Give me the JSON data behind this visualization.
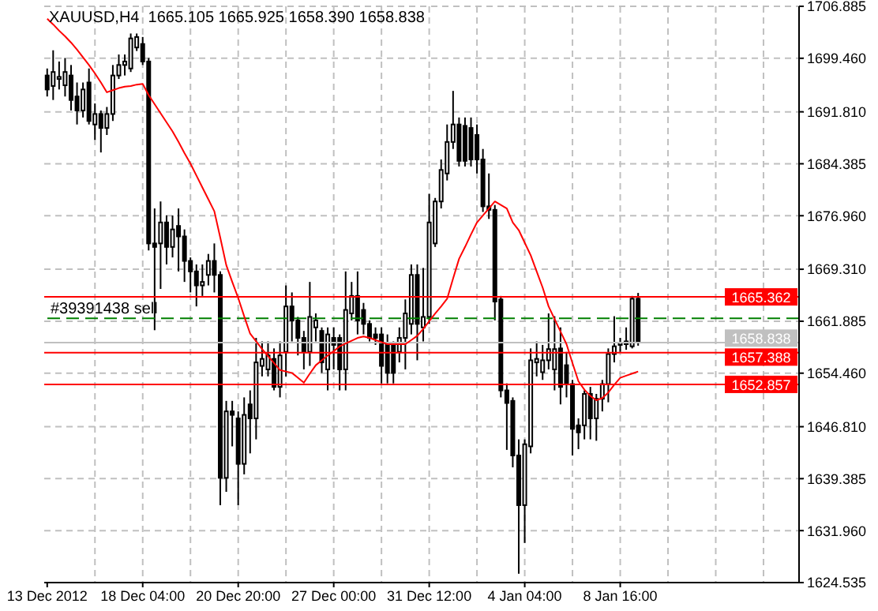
{
  "chart_data": {
    "type": "candlestick",
    "title": "XAUUSD,H4  1665.105 1665.925 1658.390 1658.838",
    "categories": [
      "13 Dec 2012",
      null,
      null,
      null,
      null,
      null,
      null,
      null,
      null,
      null,
      null,
      null,
      null,
      null,
      null,
      null,
      "18 Dec 04:00",
      null,
      null,
      null,
      null,
      null,
      null,
      null,
      null,
      null,
      null,
      null,
      null,
      null,
      null,
      null,
      "20 Dec 20:00",
      null,
      null,
      null,
      null,
      null,
      null,
      null,
      null,
      null,
      null,
      null,
      null,
      null,
      null,
      null,
      "27 Dec 00:00",
      null,
      null,
      null,
      null,
      null,
      null,
      null,
      null,
      null,
      null,
      null,
      null,
      null,
      null,
      null,
      "31 Dec 12:00",
      null,
      null,
      null,
      null,
      null,
      null,
      null,
      null,
      null,
      null,
      null,
      null,
      null,
      null,
      null,
      "4 Jan 04:00",
      null,
      null,
      null,
      null,
      null,
      null,
      null,
      null,
      null,
      null,
      null,
      null,
      null,
      null,
      null,
      "8 Jan 16:00",
      null,
      null,
      null
    ],
    "ohlc": [
      [
        1697,
        1698,
        1694,
        1695
      ],
      [
        1695.5,
        1700.6,
        1693.5,
        1697.5
      ],
      [
        1696.5,
        1699,
        1695,
        1696.8
      ],
      [
        1695.6,
        1699.5,
        1694,
        1697.5
      ],
      [
        1697,
        1698.5,
        1692,
        1693.5
      ],
      [
        1694,
        1696,
        1690,
        1692
      ],
      [
        1692,
        1696,
        1691,
        1695
      ],
      [
        1696,
        1698,
        1690,
        1690.5
      ],
      [
        1690,
        1693,
        1687.8,
        1691.5
      ],
      [
        1691.5,
        1692,
        1686,
        1689.5
      ],
      [
        1689.5,
        1692.5,
        1688.5,
        1691.5
      ],
      [
        1691.5,
        1698.5,
        1690.5,
        1697
      ],
      [
        1697,
        1700,
        1696.5,
        1698.5
      ],
      [
        1698.5,
        1700,
        1697,
        1699
      ],
      [
        1698,
        1703,
        1697.5,
        1702.3
      ],
      [
        1701,
        1703,
        1700.5,
        1702.5
      ],
      [
        1701.5,
        1702.5,
        1698.5,
        1699
      ],
      [
        1699,
        1699.5,
        1672,
        1673
      ],
      [
        1673,
        1678,
        1660.6,
        1672.5
      ],
      [
        1673,
        1679,
        1666.5,
        1676
      ],
      [
        1676,
        1677,
        1670,
        1672.5
      ],
      [
        1672.5,
        1677,
        1671,
        1675
      ],
      [
        1675.5,
        1678,
        1669,
        1674
      ],
      [
        1674,
        1675,
        1667.5,
        1670.5
      ],
      [
        1670.5,
        1671,
        1666,
        1669
      ],
      [
        1669,
        1670,
        1664,
        1667
      ],
      [
        1667,
        1670,
        1665.5,
        1667.5
      ],
      [
        1668.5,
        1671.5,
        1667,
        1670.5
      ],
      [
        1670.5,
        1673,
        1666,
        1668.5
      ],
      [
        1668.5,
        1669,
        1635.6,
        1639.5
      ],
      [
        1639.5,
        1650.5,
        1637.5,
        1649
      ],
      [
        1649,
        1650.5,
        1644,
        1648.5
      ],
      [
        1648,
        1649,
        1635.6,
        1641.5
      ],
      [
        1641.5,
        1651,
        1640,
        1648.5
      ],
      [
        1650,
        1652,
        1643,
        1648
      ],
      [
        1648,
        1659.5,
        1645,
        1656
      ],
      [
        1655.5,
        1659,
        1654,
        1656.5
      ],
      [
        1655,
        1659,
        1654,
        1657
      ],
      [
        1656.5,
        1658,
        1652,
        1652.5
      ],
      [
        1652.5,
        1659,
        1651,
        1657
      ],
      [
        1657.5,
        1667,
        1654,
        1664
      ],
      [
        1664,
        1666,
        1659,
        1662
      ],
      [
        1662,
        1662.5,
        1657,
        1659.5
      ],
      [
        1659.5,
        1660.5,
        1655,
        1657.5
      ],
      [
        1657.5,
        1667.5,
        1655.5,
        1662.5
      ],
      [
        1661,
        1663,
        1659,
        1662
      ],
      [
        1660.5,
        1661,
        1654.5,
        1656
      ],
      [
        1655,
        1661,
        1652,
        1660
      ],
      [
        1659.5,
        1661,
        1655,
        1658.5
      ],
      [
        1659.5,
        1660,
        1652,
        1655
      ],
      [
        1655,
        1669,
        1652,
        1663.5
      ],
      [
        1663,
        1667.5,
        1662,
        1665.5
      ],
      [
        1665.5,
        1669,
        1660,
        1662
      ],
      [
        1663.5,
        1664.5,
        1660,
        1661.5
      ],
      [
        1661.5,
        1662,
        1659,
        1659.5
      ],
      [
        1660,
        1661,
        1658.5,
        1659.5
      ],
      [
        1660,
        1661,
        1653,
        1655.5
      ],
      [
        1658.5,
        1660,
        1653,
        1654.5
      ],
      [
        1658.5,
        1659,
        1653,
        1654.5
      ],
      [
        1657.5,
        1661,
        1656,
        1659.5
      ],
      [
        1659.5,
        1665,
        1655,
        1663
      ],
      [
        1661.5,
        1670,
        1660,
        1668.5
      ],
      [
        1668.5,
        1670,
        1656.3,
        1661.5
      ],
      [
        1661,
        1669.5,
        1659,
        1662.5
      ],
      [
        1662.5,
        1680.1,
        1661.5,
        1676
      ],
      [
        1673,
        1679.5,
        1672.5,
        1679
      ],
      [
        1679,
        1685,
        1678,
        1683.5
      ],
      [
        1683,
        1690,
        1682,
        1687.5
      ],
      [
        1687.5,
        1694.8,
        1686.5,
        1690
      ],
      [
        1690,
        1691,
        1684,
        1684.8
      ],
      [
        1689.8,
        1691,
        1684,
        1684.8
      ],
      [
        1689.5,
        1691,
        1684,
        1685
      ],
      [
        1688.5,
        1690,
        1683,
        1685
      ],
      [
        1685,
        1686.5,
        1677.5,
        1678.3
      ],
      [
        1678.3,
        1683,
        1676.5,
        1677.8
      ],
      [
        1677.8,
        1678.5,
        1662,
        1664.7
      ],
      [
        1665,
        1665.5,
        1651,
        1652
      ],
      [
        1652,
        1653,
        1643.5,
        1650.2
      ],
      [
        1650.5,
        1651,
        1641,
        1642.7
      ],
      [
        1642.7,
        1645,
        1625.8,
        1635.6
      ],
      [
        1635.6,
        1645,
        1630.2,
        1644.3
      ],
      [
        1644,
        1658,
        1643,
        1656.3
      ],
      [
        1656,
        1659,
        1654,
        1656.5
      ],
      [
        1654.6,
        1658.5,
        1653.5,
        1656.3
      ],
      [
        1656.3,
        1663,
        1655,
        1657.9
      ],
      [
        1655,
        1662.6,
        1652,
        1657.9
      ],
      [
        1658,
        1661,
        1650,
        1652.5
      ],
      [
        1655.6,
        1657.5,
        1651,
        1652.9
      ],
      [
        1652.9,
        1653.5,
        1642.7,
        1646.5
      ],
      [
        1647,
        1648,
        1643.6,
        1646
      ],
      [
        1647,
        1652,
        1645,
        1651.5
      ],
      [
        1651.5,
        1652.5,
        1645,
        1648
      ],
      [
        1648,
        1651.5,
        1644.8,
        1650.8
      ],
      [
        1650.8,
        1653.5,
        1649,
        1652.9
      ],
      [
        1652.9,
        1658,
        1650.3,
        1657.2
      ],
      [
        1657.2,
        1662.6,
        1656,
        1658.3
      ],
      [
        1658.5,
        1659.5,
        1657.5,
        1658.8
      ],
      [
        1658.6,
        1661,
        1657.8,
        1659
      ],
      [
        1658.3,
        1665.5,
        1658,
        1665.1
      ],
      [
        1665.105,
        1665.925,
        1658.39,
        1658.838
      ]
    ],
    "series": [
      {
        "type": "line",
        "color": "#ff0000",
        "values": [
          1705.1,
          1704.3,
          1703.4,
          1702.6,
          1701.7,
          1700.7,
          1699.6,
          1698.5,
          1697.3,
          1696.0,
          1694.6,
          1694.9,
          1695.2,
          1695.4,
          1695.5,
          1695.7,
          1695.8,
          1694.2,
          1692.9,
          1691.6,
          1690.3,
          1689.0,
          1687.5,
          1685.9,
          1684.4,
          1682.7,
          1681.0,
          1679.3,
          1677.6,
          1673.8,
          1669.9,
          1667.5,
          1665.2,
          1662.6,
          1660.1,
          1659.0,
          1657.9,
          1656.9,
          1655.9,
          1654.9,
          1654.7,
          1654.5,
          1653.8,
          1653.1,
          1654.4,
          1655.6,
          1656.3,
          1657.0,
          1657.6,
          1658.3,
          1658.7,
          1659.1,
          1659.5,
          1659.7,
          1659.5,
          1659.2,
          1658.9,
          1658.6,
          1658.6,
          1658.6,
          1658.6,
          1659.2,
          1659.8,
          1660.8,
          1661.9,
          1663.0,
          1664.0,
          1665.1,
          1668.0,
          1670.8,
          1672.5,
          1674.3,
          1676.0,
          1677.0,
          1678.0,
          1679.0,
          1678.5,
          1678.0,
          1676.0,
          1674.9,
          1673.1,
          1671.3,
          1669.0,
          1666.7,
          1664.0,
          1662.2,
          1660.4,
          1658.6,
          1655.9,
          1653.3,
          1652.1,
          1651.2,
          1650.6,
          1650.9,
          1651.7,
          1652.8,
          1653.8,
          1654.1,
          1654.4,
          1654.7
        ]
      }
    ],
    "ylim": [
      1624.535,
      1706.885
    ],
    "yticks": [
      {
        "value": 1624.535,
        "label": "1624.535"
      },
      {
        "value": 1631.96,
        "label": "1631.960"
      },
      {
        "value": 1639.385,
        "label": "1639.385"
      },
      {
        "value": 1646.81,
        "label": "1646.810"
      },
      {
        "value": 1654.46,
        "label": "1654.460"
      },
      {
        "value": 1661.885,
        "label": "1661.885"
      },
      {
        "value": 1669.31,
        "label": "1669.310"
      },
      {
        "value": 1676.96,
        "label": "1676.960"
      },
      {
        "value": 1684.385,
        "label": "1684.385"
      },
      {
        "value": 1691.81,
        "label": "1691.810"
      },
      {
        "value": 1699.46,
        "label": "1699.460"
      },
      {
        "value": 1706.885,
        "label": "1706.885"
      }
    ],
    "ref_lines": [
      {
        "axis": "y",
        "value": 1665.362,
        "label": "1665.362",
        "color": "#ff0000",
        "line_style": "solid"
      },
      {
        "axis": "y",
        "value": 1662.3,
        "label": "#39391438 sell",
        "color": "#008000",
        "line_style": "dashed"
      },
      {
        "axis": "y",
        "value": 1658.838,
        "label": "1658.838",
        "color": "#c0c0c0",
        "line_style": "solid"
      },
      {
        "axis": "y",
        "value": 1657.388,
        "label": "1657.388",
        "color": "#ff0000",
        "line_style": "solid"
      },
      {
        "axis": "y",
        "value": 1652.857,
        "label": "1652.857",
        "color": "#ff0000",
        "line_style": "solid"
      }
    ],
    "grid": true,
    "marker": "none"
  }
}
